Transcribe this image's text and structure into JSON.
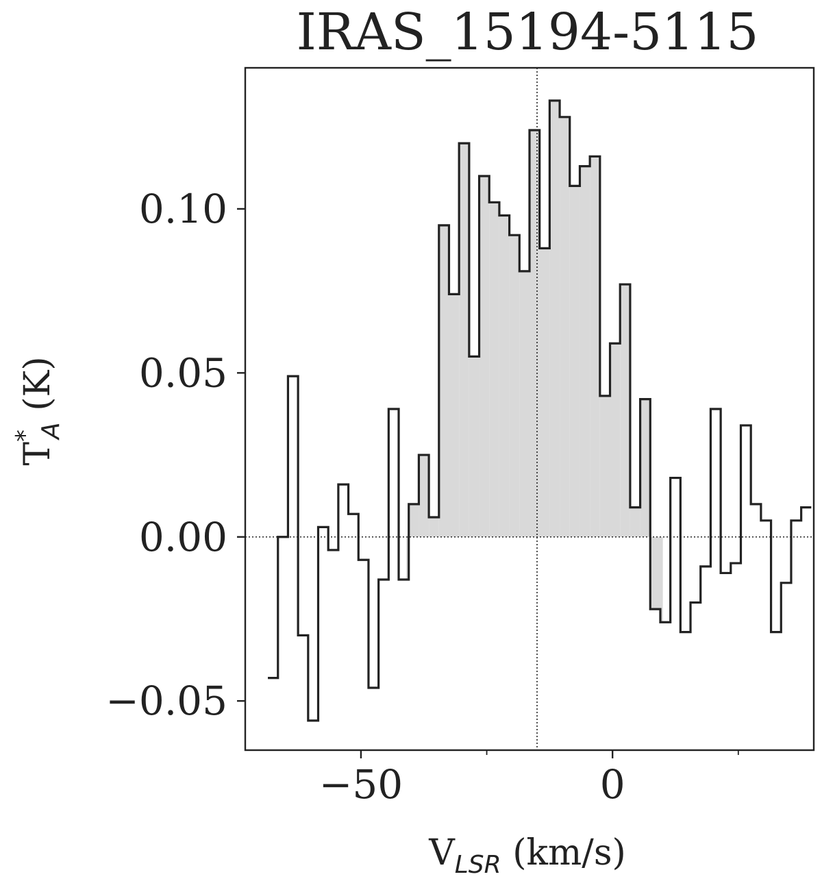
{
  "chart_data": {
    "type": "line",
    "title": "IRAS_15194-5115",
    "xlabel": {
      "main": "V",
      "subscript": "LSR",
      "unit": " (km/s)"
    },
    "ylabel": {
      "main": "T",
      "superscript": "*",
      "subscript": "A",
      "unit": " (K)"
    },
    "xlim": [
      -73,
      40
    ],
    "ylim": [
      -0.065,
      0.143
    ],
    "x_ticks": [
      -50,
      0
    ],
    "x_tick_labels": [
      "−50",
      "0"
    ],
    "x_minor_ticks": [
      -25,
      25
    ],
    "y_ticks": [
      -0.05,
      0.0,
      0.05,
      0.1
    ],
    "y_tick_labels": [
      "−0.05",
      "0.00",
      "0.05",
      "0.10"
    ],
    "reference_lines": {
      "horizontal_y": 0.0,
      "vertical_x": -15
    },
    "shaded_range": [
      -41,
      10
    ],
    "fill_color": "#d9d9d9",
    "line_color": "#222222",
    "series": [
      {
        "step": "mid",
        "x": [
          -67.5,
          -65.5,
          -63.5,
          -61.5,
          -59.5,
          -57.5,
          -55.5,
          -53.5,
          -51.5,
          -49.5,
          -47.5,
          -45.5,
          -43.5,
          -41.5,
          -39.5,
          -37.5,
          -35.5,
          -33.5,
          -31.5,
          -29.5,
          -27.5,
          -25.5,
          -23.5,
          -21.5,
          -19.5,
          -17.5,
          -15.5,
          -13.5,
          -11.5,
          -9.5,
          -7.5,
          -5.5,
          -3.5,
          -1.5,
          0.5,
          2.5,
          4.5,
          6.5,
          8.5,
          10.5,
          12.5,
          14.5,
          16.5,
          18.5,
          20.5,
          22.5,
          24.5,
          26.5,
          28.5,
          30.5,
          32.5,
          34.5,
          36.5,
          38.5
        ],
        "y": [
          -0.043,
          0.0,
          0.049,
          -0.03,
          -0.056,
          0.003,
          -0.004,
          0.016,
          0.007,
          -0.007,
          -0.046,
          -0.013,
          0.039,
          -0.013,
          0.01,
          0.025,
          0.006,
          0.095,
          0.074,
          0.12,
          0.055,
          0.11,
          0.102,
          0.098,
          0.092,
          0.081,
          0.124,
          0.088,
          0.133,
          0.128,
          0.107,
          0.113,
          0.116,
          0.043,
          0.059,
          0.077,
          0.009,
          0.042,
          -0.022,
          -0.026,
          0.018,
          -0.029,
          -0.02,
          -0.009,
          0.039,
          -0.011,
          -0.008,
          0.034,
          0.01,
          0.005,
          -0.029,
          -0.014,
          0.005,
          0.009
        ]
      }
    ]
  }
}
